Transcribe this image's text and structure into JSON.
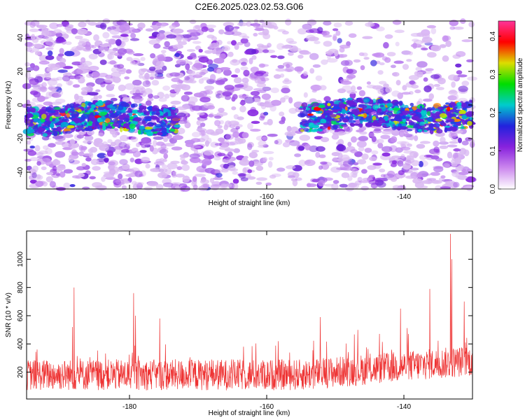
{
  "title": "C2E6.2025.023.02.53.G06",
  "chart_data": [
    {
      "type": "heatmap",
      "title": "C2E6.2025.023.02.53.G06",
      "xlabel": "Height of straight line (km)",
      "ylabel": "Frequency (Hz)",
      "xlim": [
        -195,
        -130
      ],
      "ylim": [
        -50,
        50
      ],
      "xticks": [
        -180,
        -160,
        -140
      ],
      "yticks": [
        -40,
        -20,
        0,
        20,
        40
      ],
      "colorbar": {
        "label": "Normalized spectral amplitude",
        "range": [
          0,
          0.44
        ],
        "ticks": [
          0.0,
          0.1,
          0.2,
          0.3,
          0.4
        ],
        "colors": [
          "#ffffff",
          "#cc88ee",
          "#8822dd",
          "#2222dd",
          "#00cccc",
          "#00dd00",
          "#dddd00",
          "#ff0000",
          "#ff3399"
        ]
      },
      "bands": [
        {
          "x_start": -195,
          "x_end": -173,
          "center_freq": -8,
          "width": 10
        },
        {
          "x_start": -155,
          "x_end": -130,
          "center_freq": -6,
          "width": 10
        }
      ],
      "grid": false
    },
    {
      "type": "line",
      "xlabel": "Height of straight line (km)",
      "ylabel": "SNR (10 * v/v)",
      "xlim": [
        -195,
        -130
      ],
      "ylim": [
        10,
        1200
      ],
      "xticks": [
        -180,
        -160,
        -140
      ],
      "yticks": [
        200,
        400,
        600,
        800,
        1000
      ],
      "color": "#ee3333",
      "peaks": [
        {
          "x": -188.1,
          "y": 800
        },
        {
          "x": -188.3,
          "y": 520
        },
        {
          "x": -179.4,
          "y": 760
        },
        {
          "x": -179.1,
          "y": 600
        },
        {
          "x": -175.6,
          "y": 580
        },
        {
          "x": -152.2,
          "y": 590
        },
        {
          "x": -140.5,
          "y": 650
        },
        {
          "x": -136.2,
          "y": 790
        },
        {
          "x": -133.2,
          "y": 1180
        },
        {
          "x": -133.0,
          "y": 1000
        },
        {
          "x": -131.2,
          "y": 700
        }
      ],
      "grid": false
    }
  ]
}
